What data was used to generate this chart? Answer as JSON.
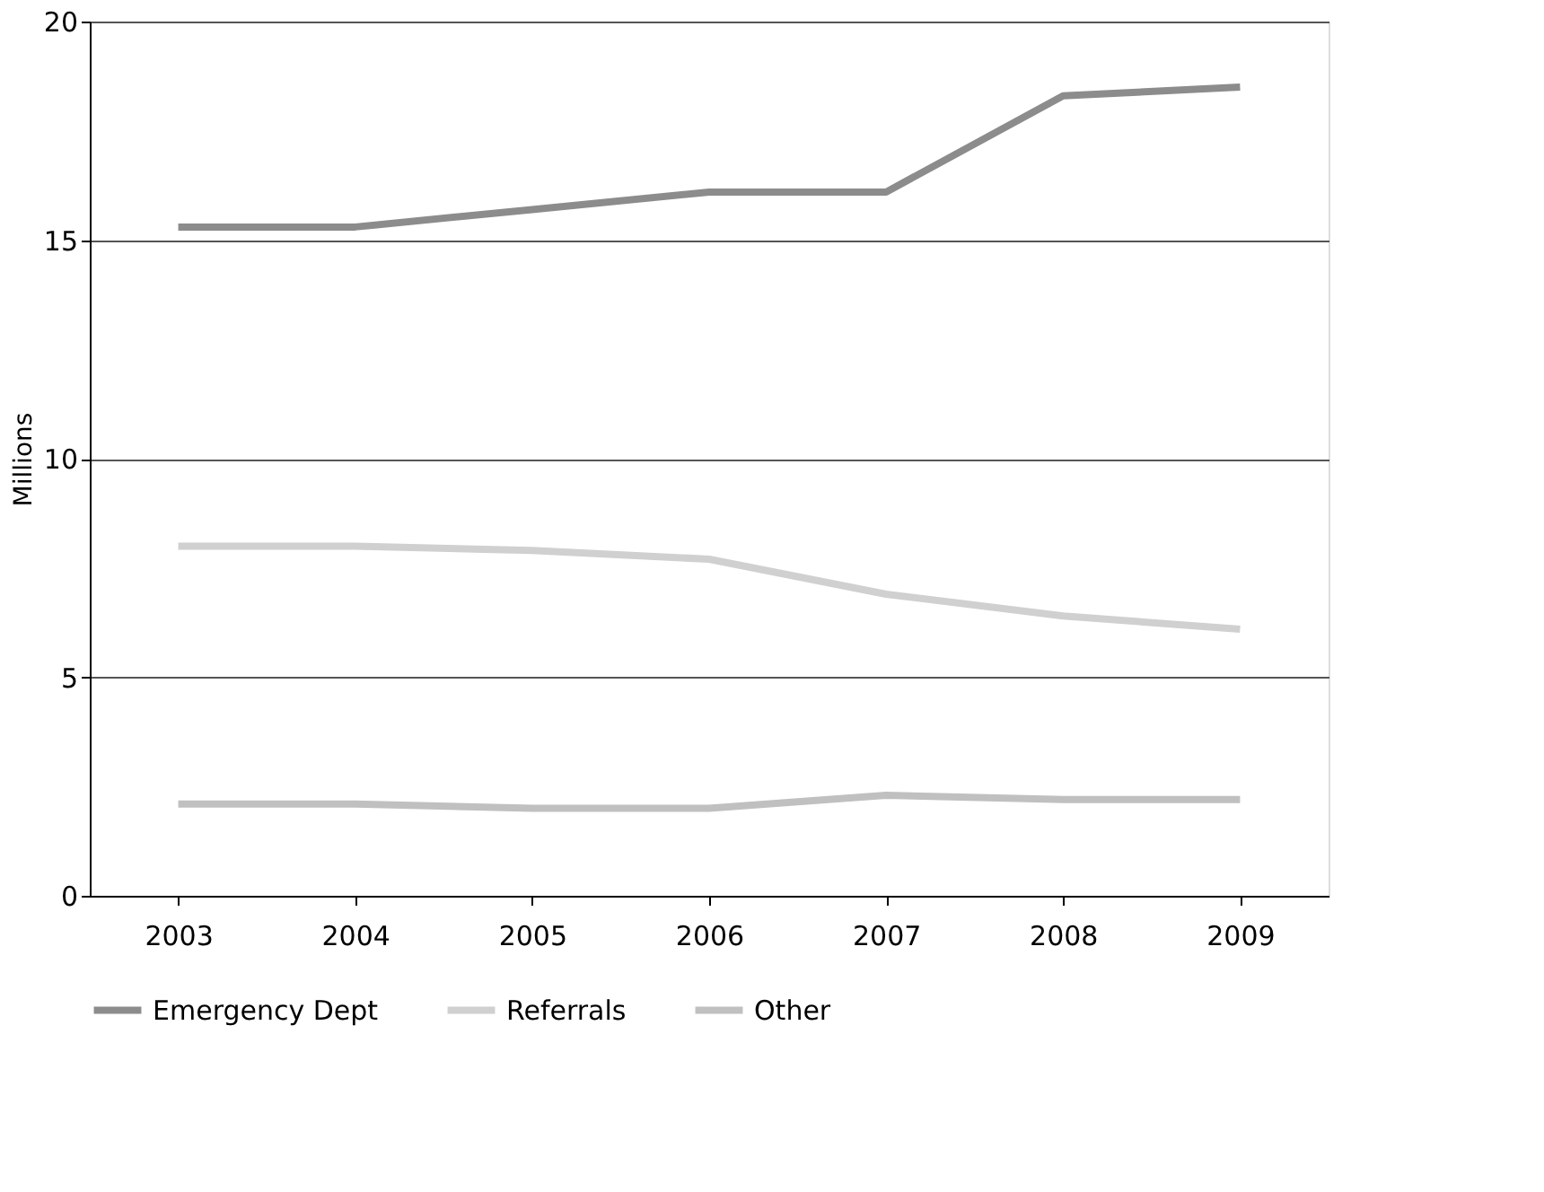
{
  "chart_data": {
    "type": "line",
    "ylabel": "Millions",
    "categories": [
      "2003",
      "2004",
      "2005",
      "2006",
      "2007",
      "2008",
      "2009"
    ],
    "series": [
      {
        "name": "Emergency Dept",
        "color": "#8c8c8c",
        "values": [
          15.3,
          15.3,
          15.7,
          16.1,
          16.1,
          18.3,
          18.5
        ]
      },
      {
        "name": "Referrals",
        "color": "#d0d0d0",
        "values": [
          8.0,
          8.0,
          7.9,
          7.7,
          6.9,
          6.4,
          6.1
        ]
      },
      {
        "name": "Other",
        "color": "#c0c0c0",
        "values": [
          2.1,
          2.1,
          2.0,
          2.0,
          2.3,
          2.2,
          2.2
        ]
      }
    ],
    "ylim": [
      0,
      20
    ],
    "yticks": [
      0,
      5,
      10,
      15,
      20
    ],
    "grid": "y",
    "legend": "bottom",
    "marker": "none",
    "line_style": "solid"
  }
}
